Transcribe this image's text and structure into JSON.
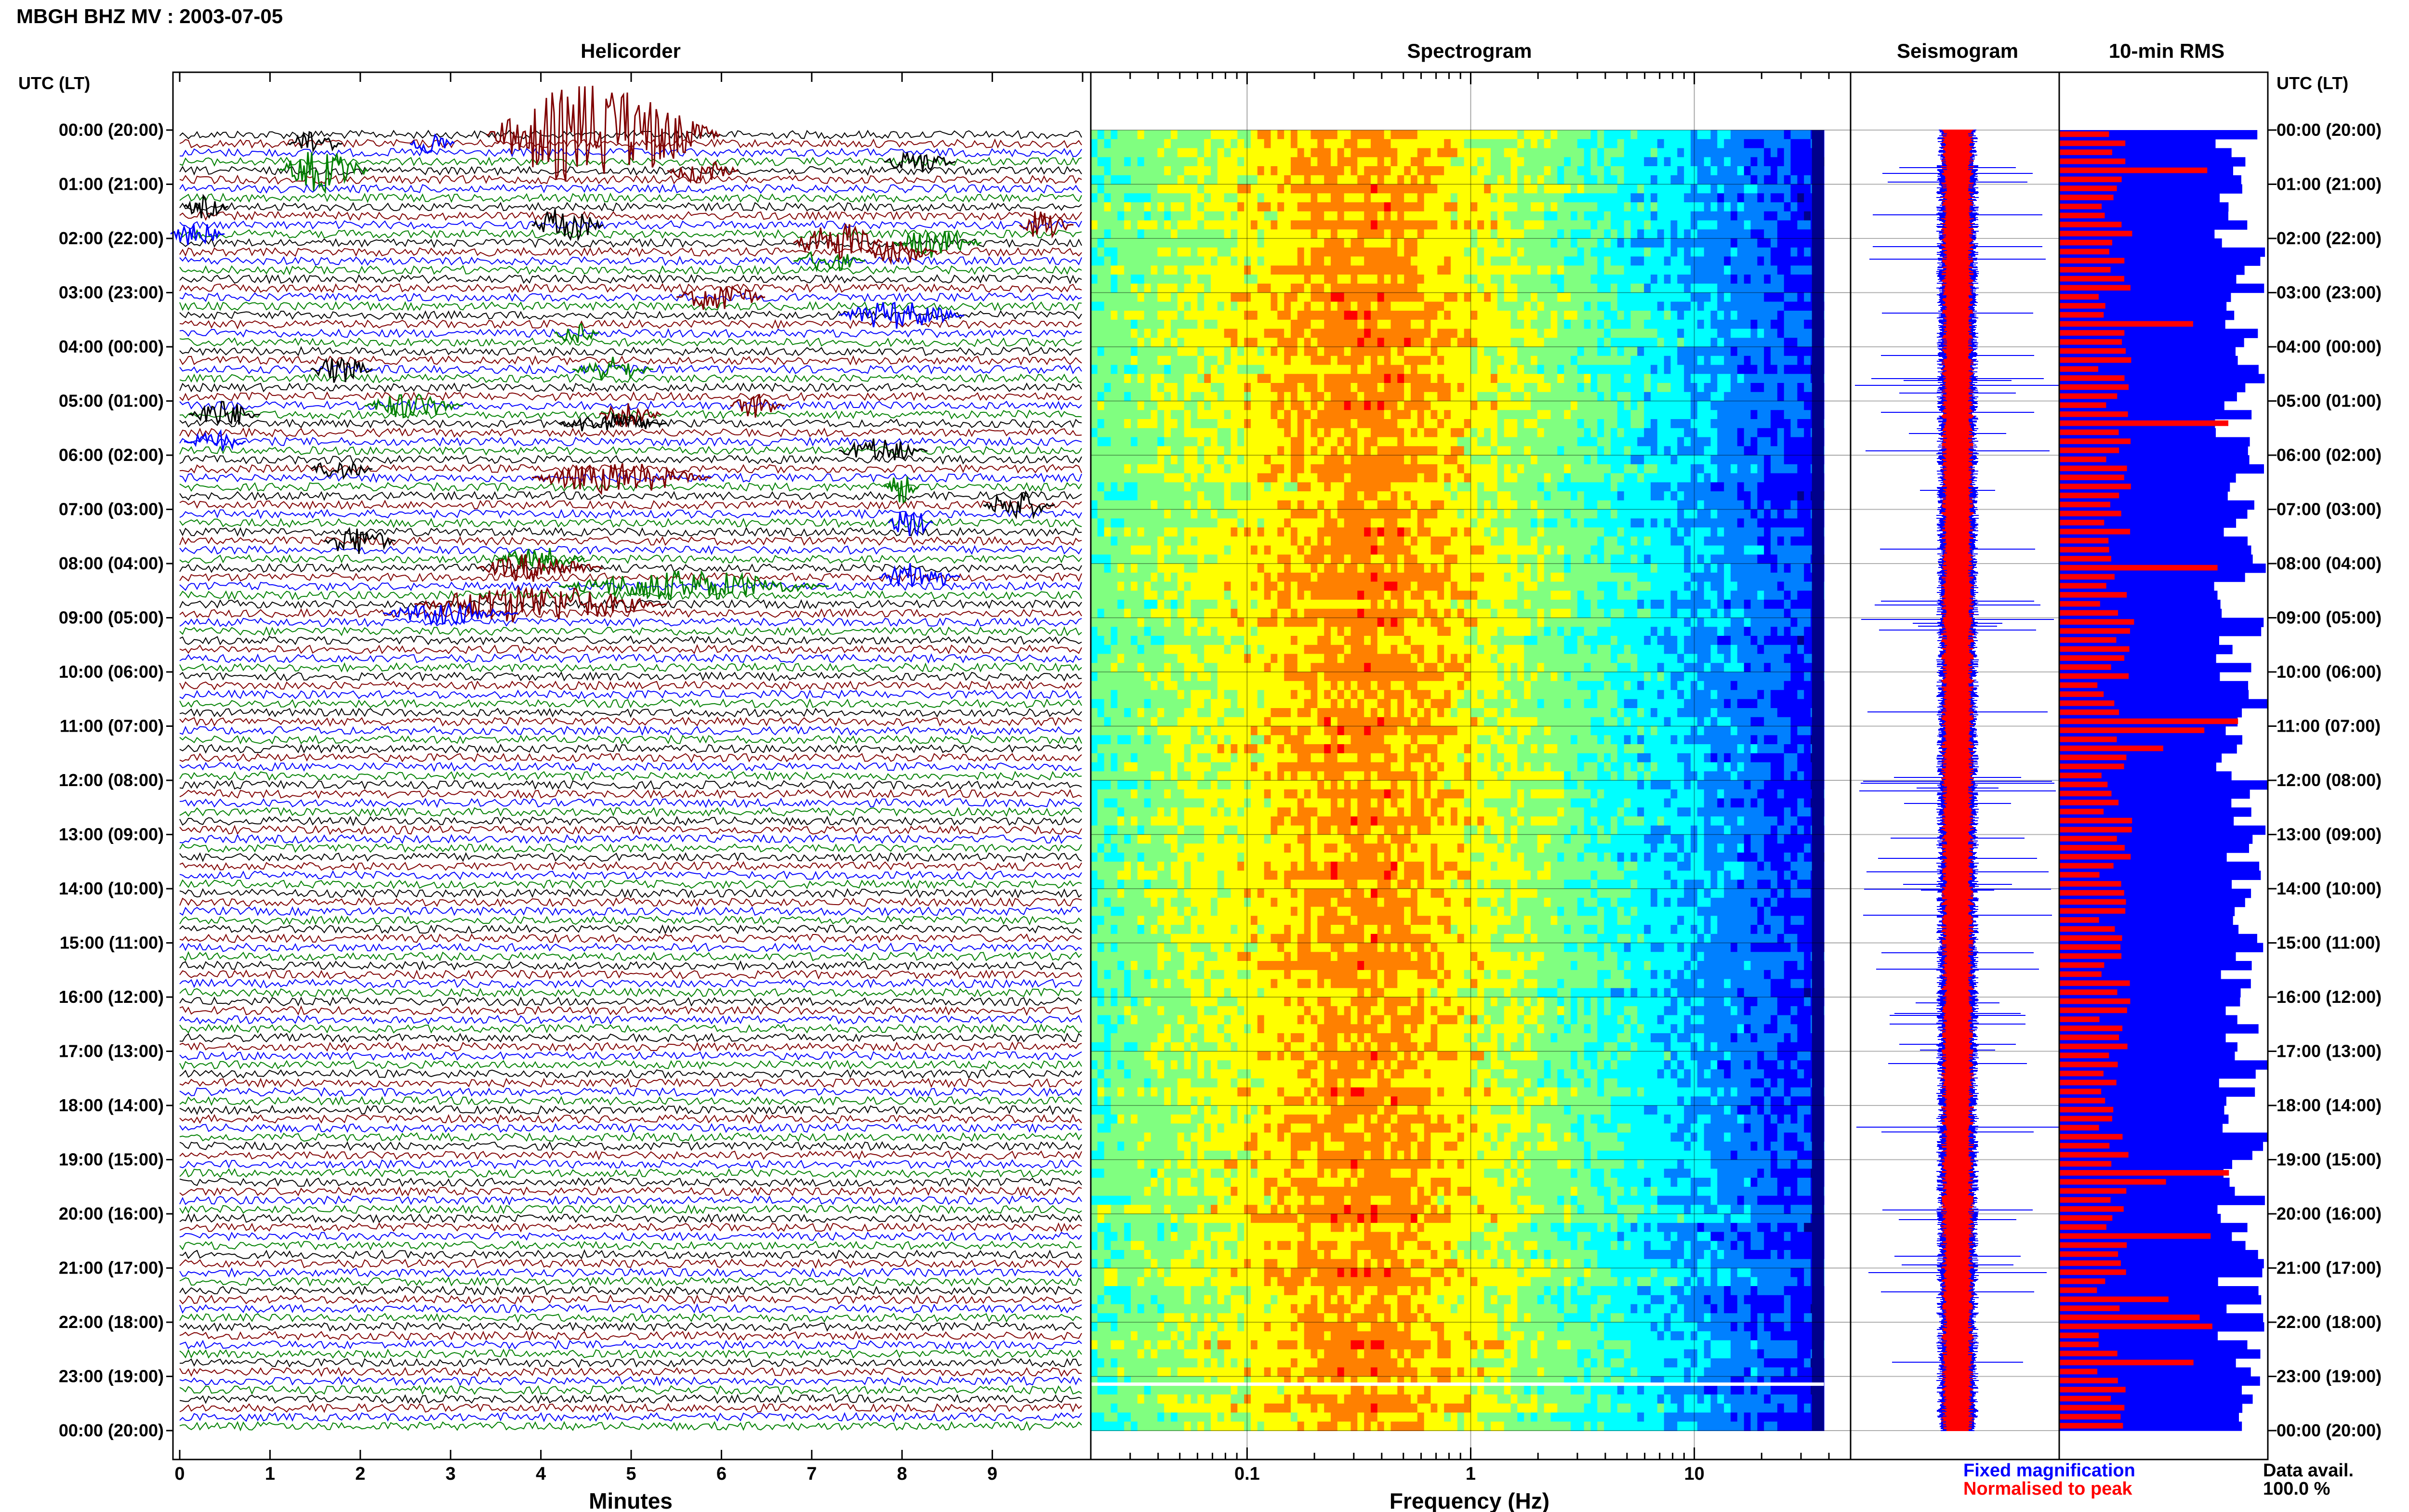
{
  "chart_data": {
    "type": "heatmap",
    "title": "MBGH BHZ MV : 2003-07-05",
    "time_axis_label": "UTC (LT)",
    "hour_labels": [
      "00:00 (20:00)",
      "01:00 (21:00)",
      "02:00 (22:00)",
      "03:00 (23:00)",
      "04:00 (00:00)",
      "05:00 (01:00)",
      "06:00 (02:00)",
      "07:00 (03:00)",
      "08:00 (04:00)",
      "09:00 (05:00)",
      "10:00 (06:00)",
      "11:00 (07:00)",
      "12:00 (08:00)",
      "13:00 (09:00)",
      "14:00 (10:00)",
      "15:00 (11:00)",
      "16:00 (12:00)",
      "17:00 (13:00)",
      "18:00 (14:00)",
      "19:00 (15:00)",
      "20:00 (16:00)",
      "21:00 (17:00)",
      "22:00 (18:00)",
      "23:00 (19:00)",
      "00:00 (20:00)"
    ],
    "panels": {
      "helicorder": {
        "title": "Helicorder",
        "xlabel": "Minutes",
        "xticks": [
          "0",
          "1",
          "2",
          "3",
          "4",
          "5",
          "6",
          "7",
          "8",
          "9"
        ],
        "xlim": [
          0,
          10
        ],
        "rows_per_hour": 6,
        "trace_colors": [
          "#000000",
          "#7f0000",
          "#0000ff",
          "#008000"
        ],
        "events": [
          {
            "row": 0,
            "minute": 4.7,
            "dur": 2.6,
            "amp": 7.0,
            "color": "#7f0000"
          },
          {
            "row": 1,
            "minute": 1.5,
            "dur": 0.6,
            "amp": 2.0,
            "color": "#000000"
          },
          {
            "row": 1,
            "minute": 2.8,
            "dur": 0.5,
            "amp": 1.8,
            "color": "#0000ff"
          },
          {
            "row": 3,
            "minute": 8.2,
            "dur": 0.8,
            "amp": 1.6,
            "color": "#000000"
          },
          {
            "row": 4,
            "minute": 1.6,
            "dur": 1.0,
            "amp": 3.0,
            "color": "#008000"
          },
          {
            "row": 4,
            "minute": 5.8,
            "dur": 0.8,
            "amp": 1.7,
            "color": "#7f0000"
          },
          {
            "row": 8,
            "minute": 0.3,
            "dur": 0.5,
            "amp": 1.6,
            "color": "#000000"
          },
          {
            "row": 10,
            "minute": 4.3,
            "dur": 0.8,
            "amp": 2.6,
            "color": "#000000"
          },
          {
            "row": 10,
            "minute": 9.6,
            "dur": 0.6,
            "amp": 2.3,
            "color": "#7f0000"
          },
          {
            "row": 11,
            "minute": 0.2,
            "dur": 0.6,
            "amp": 1.8,
            "color": "#0000ff"
          },
          {
            "row": 12,
            "minute": 7.3,
            "dur": 1.0,
            "amp": 3.0,
            "color": "#7f0000"
          },
          {
            "row": 12,
            "minute": 8.4,
            "dur": 1.0,
            "amp": 2.0,
            "color": "#008000"
          },
          {
            "row": 13,
            "minute": 8.0,
            "dur": 0.8,
            "amp": 1.8,
            "color": "#7f0000"
          },
          {
            "row": 14,
            "minute": 7.2,
            "dur": 0.8,
            "amp": 1.6,
            "color": "#008000"
          },
          {
            "row": 18,
            "minute": 6.0,
            "dur": 1.0,
            "amp": 2.0,
            "color": "#7f0000"
          },
          {
            "row": 20,
            "minute": 8.0,
            "dur": 1.4,
            "amp": 2.0,
            "color": "#0000ff"
          },
          {
            "row": 22,
            "minute": 4.4,
            "dur": 0.5,
            "amp": 1.5,
            "color": "#008000"
          },
          {
            "row": 26,
            "minute": 1.8,
            "dur": 0.7,
            "amp": 2.0,
            "color": "#000000"
          },
          {
            "row": 26,
            "minute": 4.8,
            "dur": 0.9,
            "amp": 1.8,
            "color": "#008000"
          },
          {
            "row": 30,
            "minute": 2.6,
            "dur": 1.1,
            "amp": 1.9,
            "color": "#008000"
          },
          {
            "row": 30,
            "minute": 6.4,
            "dur": 0.6,
            "amp": 1.8,
            "color": "#7f0000"
          },
          {
            "row": 31,
            "minute": 0.5,
            "dur": 0.8,
            "amp": 2.0,
            "color": "#000000"
          },
          {
            "row": 31,
            "minute": 5.0,
            "dur": 0.7,
            "amp": 2.0,
            "color": "#7f0000"
          },
          {
            "row": 32,
            "minute": 4.8,
            "dur": 1.2,
            "amp": 1.6,
            "color": "#000000"
          },
          {
            "row": 34,
            "minute": 0.4,
            "dur": 0.7,
            "amp": 1.6,
            "color": "#0000ff"
          },
          {
            "row": 35,
            "minute": 7.8,
            "dur": 1.0,
            "amp": 1.8,
            "color": "#000000"
          },
          {
            "row": 37,
            "minute": 1.8,
            "dur": 0.7,
            "amp": 1.5,
            "color": "#000000"
          },
          {
            "row": 38,
            "minute": 4.9,
            "dur": 2.0,
            "amp": 2.2,
            "color": "#7f0000"
          },
          {
            "row": 39,
            "minute": 8.0,
            "dur": 0.4,
            "amp": 2.4,
            "color": "#008000"
          },
          {
            "row": 41,
            "minute": 9.3,
            "dur": 0.8,
            "amp": 2.2,
            "color": "#000000"
          },
          {
            "row": 43,
            "minute": 8.1,
            "dur": 0.5,
            "amp": 2.3,
            "color": "#0000ff"
          },
          {
            "row": 45,
            "minute": 2.0,
            "dur": 0.8,
            "amp": 2.2,
            "color": "#000000"
          },
          {
            "row": 47,
            "minute": 4.0,
            "dur": 1.0,
            "amp": 1.7,
            "color": "#008000"
          },
          {
            "row": 48,
            "minute": 4.0,
            "dur": 1.4,
            "amp": 2.0,
            "color": "#7f0000"
          },
          {
            "row": 49,
            "minute": 8.2,
            "dur": 0.9,
            "amp": 2.0,
            "color": "#0000ff"
          },
          {
            "row": 50,
            "minute": 5.7,
            "dur": 3.0,
            "amp": 2.2,
            "color": "#008000"
          },
          {
            "row": 52,
            "minute": 4.0,
            "dur": 2.8,
            "amp": 2.8,
            "color": "#7f0000"
          },
          {
            "row": 53,
            "minute": 3.0,
            "dur": 1.5,
            "amp": 1.6,
            "color": "#0000ff"
          }
        ]
      },
      "spectrogram": {
        "title": "Spectrogram",
        "xlabel": "Frequency (Hz)",
        "xscale": "log",
        "xlim": [
          0.02,
          50
        ],
        "xticks": [
          "0.1",
          "1",
          "10"
        ],
        "nyquist_hz": 38,
        "band_peak_hz": [
          0.22,
          0.45
        ],
        "colormap": [
          "#00008b",
          "#0000ff",
          "#0080ff",
          "#00ffff",
          "#80ff80",
          "#ffff00",
          "#ff8000",
          "#ff0000"
        ],
        "gap_row_fraction": 0.963
      },
      "seismogram": {
        "title": "Seismogram",
        "legend": [
          {
            "label": "Fixed magnification",
            "color": "#0000ff"
          },
          {
            "label": "Normalised to peak",
            "color": "#ff0000"
          }
        ]
      },
      "rms": {
        "title": "10-min RMS",
        "bars_per_hour": 6,
        "fixed_magnification_color": "#0000ff",
        "normalised_color": "#ff0000"
      }
    },
    "data_availability": {
      "label": "Data avail.",
      "value": "100.0 %"
    }
  }
}
